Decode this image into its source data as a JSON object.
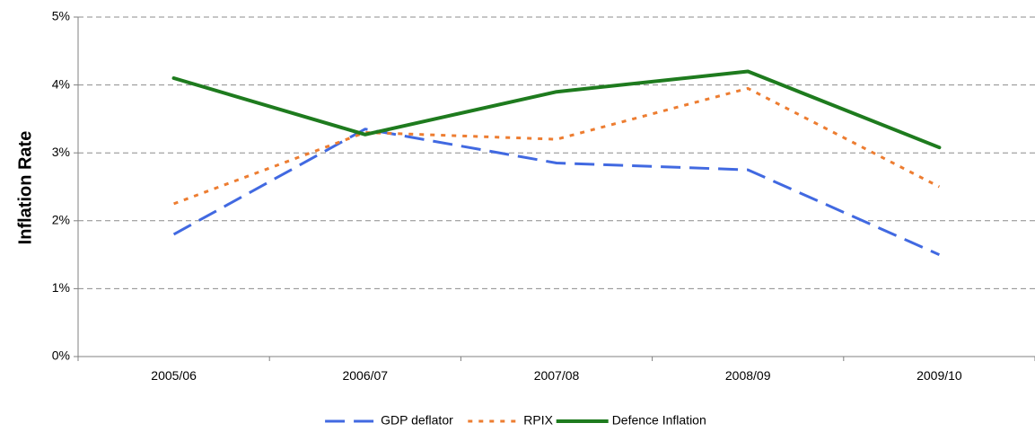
{
  "chart_data": {
    "type": "line",
    "title": "",
    "xlabel": "",
    "ylabel": "Inflation Rate",
    "categories": [
      "2005/06",
      "2006/07",
      "2007/08",
      "2008/09",
      "2009/10"
    ],
    "ylim": [
      0,
      5
    ],
    "yticks": [
      0,
      1,
      2,
      3,
      4,
      5
    ],
    "ytick_labels": [
      "0%",
      "1%",
      "2%",
      "3%",
      "4%",
      "5%"
    ],
    "grid": "horizontal dashed",
    "legend_position": "bottom",
    "series": [
      {
        "name": "GDP deflator",
        "values": [
          1.8,
          3.35,
          2.85,
          2.75,
          1.5
        ],
        "color": "#4169E1",
        "style": "long-dash"
      },
      {
        "name": "RPIX",
        "values": [
          2.25,
          3.3,
          3.2,
          3.95,
          2.5
        ],
        "color": "#ED7D31",
        "style": "dotted"
      },
      {
        "name": "Defence Inflation",
        "values": [
          4.1,
          3.27,
          3.9,
          4.2,
          3.08
        ],
        "color": "#1E7B1E",
        "style": "solid"
      }
    ]
  }
}
